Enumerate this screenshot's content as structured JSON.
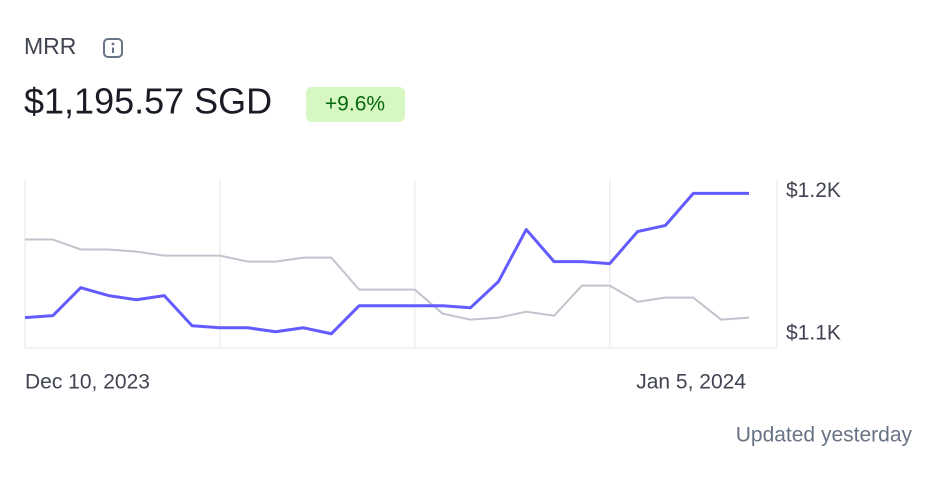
{
  "chart_data": {
    "type": "line",
    "title": "MRR",
    "headline": "$1,195.57 SGD",
    "change": "+9.6%",
    "footer": "Updated yesterday",
    "categories": [
      "Dec 10, 2023",
      null,
      null,
      null,
      null,
      null,
      null,
      null,
      null,
      null,
      null,
      null,
      null,
      null,
      null,
      null,
      null,
      null,
      null,
      null,
      null,
      null,
      null,
      null,
      null,
      null,
      "Jan 5, 2024"
    ],
    "series": [
      {
        "color": "#c0c4cc",
        "values": [
          1166.2,
          1166.2,
          1159.2,
          1159.2,
          1157.7,
          1154.9,
          1154.9,
          1154.9,
          1150.7,
          1150.7,
          1153.5,
          1153.5,
          1131,
          1131,
          1131,
          1114.1,
          1109.9,
          1111.3,
          1115.5,
          1112.7,
          1133.8,
          1133.8,
          1122.5,
          1125.4,
          1125.4,
          1109.9,
          1111.3
        ]
      },
      {
        "color": "#635bff",
        "values": [
          1111.3,
          1112.7,
          1132.4,
          1126.8,
          1123.9,
          1126.8,
          1105.6,
          1104.2,
          1104.2,
          1101.4,
          1104.2,
          1100,
          1119.7,
          1119.7,
          1119.7,
          1119.7,
          1118.3,
          1136.6,
          1173.2,
          1150.7,
          1150.7,
          1149.3,
          1171.8,
          1176.1,
          1198.6,
          1198.6,
          1198.6
        ]
      }
    ],
    "ylim": [
      1090,
      1208
    ],
    "yticks": [
      {
        "value": 1100,
        "label": "$1.1K"
      },
      {
        "value": 1200,
        "label": "$1.2K"
      }
    ]
  }
}
